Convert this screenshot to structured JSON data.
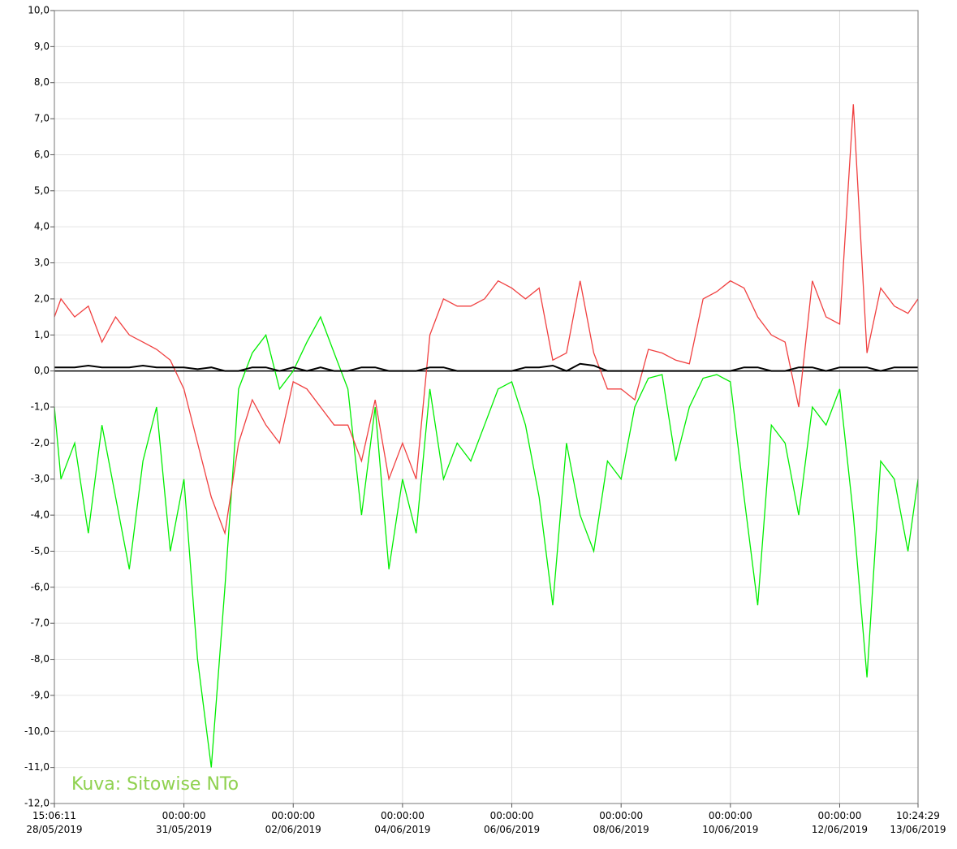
{
  "chart_data": {
    "type": "line",
    "annotation": "Kuva: Sitowise NTo",
    "x": [
      "2019-05-28T15:06:11",
      "2019-05-28T18:00:00",
      "2019-05-29T00:00:00",
      "2019-05-29T06:00:00",
      "2019-05-29T12:00:00",
      "2019-05-29T18:00:00",
      "2019-05-30T00:00:00",
      "2019-05-30T06:00:00",
      "2019-05-30T12:00:00",
      "2019-05-30T18:00:00",
      "2019-05-31T00:00:00",
      "2019-05-31T06:00:00",
      "2019-05-31T12:00:00",
      "2019-05-31T18:00:00",
      "2019-06-01T00:00:00",
      "2019-06-01T06:00:00",
      "2019-06-01T12:00:00",
      "2019-06-01T18:00:00",
      "2019-06-02T00:00:00",
      "2019-06-02T06:00:00",
      "2019-06-02T12:00:00",
      "2019-06-02T18:00:00",
      "2019-06-03T00:00:00",
      "2019-06-03T06:00:00",
      "2019-06-03T12:00:00",
      "2019-06-03T18:00:00",
      "2019-06-04T00:00:00",
      "2019-06-04T06:00:00",
      "2019-06-04T12:00:00",
      "2019-06-04T18:00:00",
      "2019-06-05T00:00:00",
      "2019-06-05T06:00:00",
      "2019-06-05T12:00:00",
      "2019-06-05T18:00:00",
      "2019-06-06T00:00:00",
      "2019-06-06T06:00:00",
      "2019-06-06T12:00:00",
      "2019-06-06T18:00:00",
      "2019-06-07T00:00:00",
      "2019-06-07T06:00:00",
      "2019-06-07T12:00:00",
      "2019-06-07T18:00:00",
      "2019-06-08T00:00:00",
      "2019-06-08T06:00:00",
      "2019-06-08T12:00:00",
      "2019-06-08T18:00:00",
      "2019-06-09T00:00:00",
      "2019-06-09T06:00:00",
      "2019-06-09T12:00:00",
      "2019-06-09T18:00:00",
      "2019-06-10T00:00:00",
      "2019-06-10T06:00:00",
      "2019-06-10T12:00:00",
      "2019-06-10T18:00:00",
      "2019-06-11T00:00:00",
      "2019-06-11T06:00:00",
      "2019-06-11T12:00:00",
      "2019-06-11T18:00:00",
      "2019-06-12T00:00:00",
      "2019-06-12T06:00:00",
      "2019-06-12T12:00:00",
      "2019-06-12T18:00:00",
      "2019-06-13T00:00:00",
      "2019-06-13T06:00:00",
      "2019-06-13T10:24:29"
    ],
    "series": [
      {
        "color": "#00ee00",
        "values": [
          -1.0,
          -3.0,
          -2.0,
          -4.5,
          -1.5,
          -3.5,
          -5.5,
          -2.5,
          -1.0,
          -5.0,
          -3.0,
          -8.0,
          -11.0,
          -6.0,
          -0.5,
          0.5,
          1.0,
          -0.5,
          0.0,
          0.8,
          1.5,
          0.5,
          -0.5,
          -4.0,
          -1.0,
          -5.5,
          -3.0,
          -4.5,
          -0.5,
          -3.0,
          -2.0,
          -2.5,
          -1.5,
          -0.5,
          -0.3,
          -1.5,
          -3.5,
          -6.5,
          -2.0,
          -4.0,
          -5.0,
          -2.5,
          -3.0,
          -1.0,
          -0.2,
          -0.1,
          -2.5,
          -1.0,
          -0.2,
          -0.1,
          -0.3,
          -3.5,
          -6.5,
          -1.5,
          -2.0,
          -4.0,
          -1.0,
          -1.5,
          -0.5,
          -4.0,
          -8.5,
          -2.5,
          -3.0,
          -5.0,
          -3.0
        ]
      },
      {
        "color": "#f04040",
        "values": [
          1.5,
          2.0,
          1.5,
          1.8,
          0.8,
          1.5,
          1.0,
          0.8,
          0.6,
          0.3,
          -0.5,
          -2.0,
          -3.5,
          -4.5,
          -2.0,
          -0.8,
          -1.5,
          -2.0,
          -0.3,
          -0.5,
          -1.0,
          -1.5,
          -1.5,
          -2.5,
          -0.8,
          -3.0,
          -2.0,
          -3.0,
          1.0,
          2.0,
          1.8,
          1.8,
          2.0,
          2.5,
          2.3,
          2.0,
          2.3,
          0.3,
          0.5,
          2.5,
          0.5,
          -0.5,
          -0.5,
          -0.8,
          0.6,
          0.5,
          0.3,
          0.2,
          2.0,
          2.2,
          2.5,
          2.3,
          1.5,
          1.0,
          0.8,
          -1.0,
          2.5,
          1.5,
          1.3,
          7.4,
          0.5,
          2.3,
          1.8,
          1.6,
          2.0
        ]
      },
      {
        "color": "#000000",
        "values": [
          0.1,
          0.1,
          0.1,
          0.15,
          0.1,
          0.1,
          0.1,
          0.15,
          0.1,
          0.1,
          0.1,
          0.05,
          0.1,
          0.0,
          0.0,
          0.1,
          0.1,
          0.0,
          0.1,
          0.0,
          0.1,
          0.0,
          0.0,
          0.1,
          0.1,
          0.0,
          0.0,
          0.0,
          0.1,
          0.1,
          0.0,
          0.0,
          0.0,
          0.0,
          0.0,
          0.1,
          0.1,
          0.15,
          0.0,
          0.2,
          0.15,
          0.0,
          0.0,
          0.0,
          0.0,
          0.0,
          0.0,
          0.0,
          0.0,
          0.0,
          0.0,
          0.1,
          0.1,
          0.0,
          0.0,
          0.1,
          0.1,
          0.0,
          0.1,
          0.1,
          0.1,
          0.0,
          0.1,
          0.1,
          0.1
        ]
      }
    ],
    "xlim": [
      "2019-05-28T15:06:11",
      "2019-06-13T10:24:29"
    ],
    "xticks": [
      {
        "value": "2019-05-28T15:06:11",
        "label": [
          "15:06:11",
          "28/05/2019"
        ]
      },
      {
        "value": "2019-05-31T00:00:00",
        "label": [
          "00:00:00",
          "31/05/2019"
        ]
      },
      {
        "value": "2019-06-02T00:00:00",
        "label": [
          "00:00:00",
          "02/06/2019"
        ]
      },
      {
        "value": "2019-06-04T00:00:00",
        "label": [
          "00:00:00",
          "04/06/2019"
        ]
      },
      {
        "value": "2019-06-06T00:00:00",
        "label": [
          "00:00:00",
          "06/06/2019"
        ]
      },
      {
        "value": "2019-06-08T00:00:00",
        "label": [
          "00:00:00",
          "08/06/2019"
        ]
      },
      {
        "value": "2019-06-10T00:00:00",
        "label": [
          "00:00:00",
          "10/06/2019"
        ]
      },
      {
        "value": "2019-06-12T00:00:00",
        "label": [
          "00:00:00",
          "12/06/2019"
        ]
      },
      {
        "value": "2019-06-13T10:24:29",
        "label": [
          "10:24:29",
          "13/06/2019"
        ]
      }
    ],
    "ylim": [
      -12,
      10
    ],
    "yticks": [
      {
        "value": 10,
        "label": "10,0"
      },
      {
        "value": 9,
        "label": "9,0"
      },
      {
        "value": 8,
        "label": "8,0"
      },
      {
        "value": 7,
        "label": "7,0"
      },
      {
        "value": 6,
        "label": "6,0"
      },
      {
        "value": 5,
        "label": "5,0"
      },
      {
        "value": 4,
        "label": "4,0"
      },
      {
        "value": 3,
        "label": "3,0"
      },
      {
        "value": 2,
        "label": "2,0"
      },
      {
        "value": 1,
        "label": "1,0"
      },
      {
        "value": 0,
        "label": "0,0"
      },
      {
        "value": -1,
        "label": "-1,0"
      },
      {
        "value": -2,
        "label": "-2,0"
      },
      {
        "value": -3,
        "label": "-3,0"
      },
      {
        "value": -4,
        "label": "-4,0"
      },
      {
        "value": -5,
        "label": "-5,0"
      },
      {
        "value": -6,
        "label": "-6,0"
      },
      {
        "value": -7,
        "label": "-7,0"
      },
      {
        "value": -8,
        "label": "-8,0"
      },
      {
        "value": -9,
        "label": "-9,0"
      },
      {
        "value": -10,
        "label": "-10,0"
      },
      {
        "value": -11,
        "label": "-11,0"
      },
      {
        "value": -12,
        "label": "-12,0"
      }
    ],
    "grid": true
  }
}
